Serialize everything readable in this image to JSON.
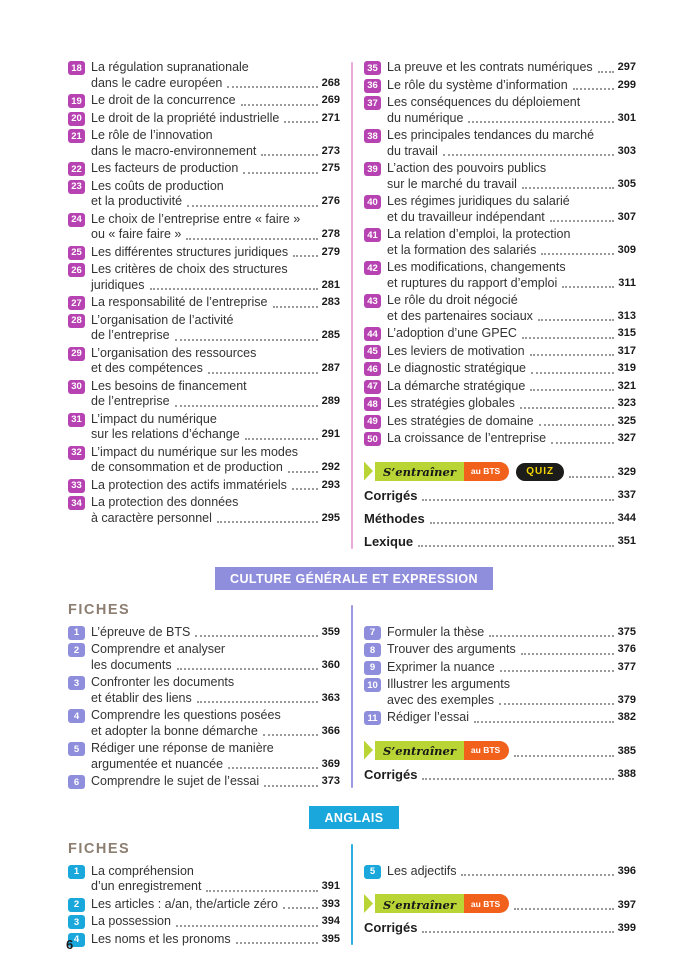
{
  "page": {
    "number": "6"
  },
  "labels": {
    "train": "S’entraîner",
    "bts": "au BTS",
    "quiz": "QUIZ"
  },
  "colors": {
    "magenta_badge": "#b743b2",
    "magenta_divider": "#eba9db",
    "periwinkle": "#8f8edd",
    "cyan": "#1aa7db",
    "train_green": "#b8d435",
    "train_orange": "#f2611c",
    "quiz_bg": "#1c1c1a",
    "quiz_text": "#f4d500",
    "fiches_heading": "#8c7e71"
  },
  "sections": [
    {
      "id": "management",
      "theme": "magenta",
      "banner": null,
      "fiches_label": null,
      "columns": [
        {
          "entries": [
            {
              "num": "18",
              "lines": [
                "La régulation supranationale",
                "dans le cadre européen"
              ],
              "page": "268"
            },
            {
              "num": "19",
              "lines": [
                "Le droit de la concurrence"
              ],
              "page": "269"
            },
            {
              "num": "20",
              "lines": [
                "Le droit de la propriété industrielle"
              ],
              "page": "271"
            },
            {
              "num": "21",
              "lines": [
                "Le rôle de l’innovation",
                "dans le macro-environnement"
              ],
              "page": "273"
            },
            {
              "num": "22",
              "lines": [
                "Les facteurs de production"
              ],
              "page": "275"
            },
            {
              "num": "23",
              "lines": [
                "Les coûts de production",
                "et la productivité"
              ],
              "page": "276"
            },
            {
              "num": "24",
              "lines": [
                "Le choix de l’entreprise entre « faire »",
                "ou « faire faire »"
              ],
              "page": "278"
            },
            {
              "num": "25",
              "lines": [
                "Les différentes structures juridiques"
              ],
              "page": "279"
            },
            {
              "num": "26",
              "lines": [
                "Les critères de choix des structures",
                "juridiques"
              ],
              "page": "281"
            },
            {
              "num": "27",
              "lines": [
                "La responsabilité de l’entreprise"
              ],
              "page": "283"
            },
            {
              "num": "28",
              "lines": [
                "L’organisation de l’activité",
                "de l’entreprise"
              ],
              "page": "285"
            },
            {
              "num": "29",
              "lines": [
                "L’organisation des ressources",
                "et des compétences"
              ],
              "page": "287"
            },
            {
              "num": "30",
              "lines": [
                "Les besoins de financement",
                "de l’entreprise"
              ],
              "page": "289"
            },
            {
              "num": "31",
              "lines": [
                "L’impact du numérique",
                "sur les relations d’échange"
              ],
              "page": "291"
            },
            {
              "num": "32",
              "lines": [
                "L’impact du numérique sur les modes",
                "de consommation et de production"
              ],
              "page": "292"
            },
            {
              "num": "33",
              "lines": [
                "La protection des actifs immatériels"
              ],
              "page": "293"
            },
            {
              "num": "34",
              "lines": [
                "La protection des données",
                "à caractère personnel"
              ],
              "page": "295"
            }
          ],
          "extras": []
        },
        {
          "entries": [
            {
              "num": "35",
              "lines": [
                "La preuve et les contrats numériques"
              ],
              "page": "297"
            },
            {
              "num": "36",
              "lines": [
                "Le rôle du système d’information"
              ],
              "page": "299"
            },
            {
              "num": "37",
              "lines": [
                "Les conséquences du déploiement",
                "du numérique"
              ],
              "page": "301"
            },
            {
              "num": "38",
              "lines": [
                "Les principales tendances du marché",
                "du travail"
              ],
              "page": "303"
            },
            {
              "num": "39",
              "lines": [
                "L’action des pouvoirs publics",
                "sur le marché du travail"
              ],
              "page": "305"
            },
            {
              "num": "40",
              "lines": [
                "Les régimes juridiques du salarié",
                "et du travailleur indépendant"
              ],
              "page": "307"
            },
            {
              "num": "41",
              "lines": [
                "La relation d’emploi, la protection",
                "et la formation des salariés"
              ],
              "page": "309"
            },
            {
              "num": "42",
              "lines": [
                "Les modifications, changements",
                "et ruptures du rapport d’emploi"
              ],
              "page": "311"
            },
            {
              "num": "43",
              "lines": [
                "Le rôle du droit négocié",
                "et des partenaires sociaux"
              ],
              "page": "313"
            },
            {
              "num": "44",
              "lines": [
                "L’adoption d’une GPEC"
              ],
              "page": "315"
            },
            {
              "num": "45",
              "lines": [
                "Les leviers de motivation"
              ],
              "page": "317"
            },
            {
              "num": "46",
              "lines": [
                "Le diagnostic stratégique"
              ],
              "page": "319"
            },
            {
              "num": "47",
              "lines": [
                "La démarche stratégique"
              ],
              "page": "321"
            },
            {
              "num": "48",
              "lines": [
                "Les stratégies globales"
              ],
              "page": "323"
            },
            {
              "num": "49",
              "lines": [
                "Les stratégies de domaine"
              ],
              "page": "325"
            },
            {
              "num": "50",
              "lines": [
                "La croissance de l’entreprise"
              ],
              "page": "327"
            }
          ],
          "extras": [
            {
              "type": "train",
              "quiz": true,
              "page": "329"
            },
            {
              "type": "label",
              "label": "Corrigés",
              "page": "337"
            },
            {
              "type": "label",
              "label": "Méthodes",
              "page": "344"
            },
            {
              "type": "label",
              "label": "Lexique",
              "page": "351"
            }
          ]
        }
      ]
    },
    {
      "id": "culture-generale",
      "theme": "periwinkle",
      "banner": "CULTURE GÉNÉRALE ET EXPRESSION",
      "fiches_label": "FICHES",
      "columns": [
        {
          "entries": [
            {
              "num": "1",
              "lines": [
                "L’épreuve de BTS"
              ],
              "page": "359"
            },
            {
              "num": "2",
              "lines": [
                "Comprendre et analyser",
                "les documents"
              ],
              "page": "360"
            },
            {
              "num": "3",
              "lines": [
                "Confronter les documents",
                "et établir des liens"
              ],
              "page": "363"
            },
            {
              "num": "4",
              "lines": [
                "Comprendre les questions posées",
                "et adopter la bonne démarche"
              ],
              "page": "366"
            },
            {
              "num": "5",
              "lines": [
                "Rédiger une réponse de manière",
                "argumentée et nuancée"
              ],
              "page": "369"
            },
            {
              "num": "6",
              "lines": [
                "Comprendre le sujet de l’essai"
              ],
              "page": "373"
            }
          ],
          "extras": []
        },
        {
          "entries": [
            {
              "num": "7",
              "lines": [
                "Formuler la thèse"
              ],
              "page": "375"
            },
            {
              "num": "8",
              "lines": [
                "Trouver des arguments"
              ],
              "page": "376"
            },
            {
              "num": "9",
              "lines": [
                "Exprimer la nuance"
              ],
              "page": "377"
            },
            {
              "num": "10",
              "lines": [
                "Illustrer les arguments",
                "avec des exemples"
              ],
              "page": "379"
            },
            {
              "num": "11",
              "lines": [
                "Rédiger l’essai"
              ],
              "page": "382"
            }
          ],
          "extras": [
            {
              "type": "train",
              "quiz": false,
              "page": "385"
            },
            {
              "type": "label",
              "label": "Corrigés",
              "page": "388"
            }
          ]
        }
      ]
    },
    {
      "id": "anglais",
      "theme": "cyan",
      "banner": "ANGLAIS",
      "fiches_label": "FICHES",
      "columns": [
        {
          "entries": [
            {
              "num": "1",
              "lines": [
                "La compréhension",
                "d’un enregistrement"
              ],
              "page": "391"
            },
            {
              "num": "2",
              "lines": [
                "Les articles : a/an, the/article zéro"
              ],
              "page": "393"
            },
            {
              "num": "3",
              "lines": [
                "La possession"
              ],
              "page": "394"
            },
            {
              "num": "4",
              "lines": [
                "Les noms et les pronoms"
              ],
              "page": "395"
            }
          ],
          "extras": []
        },
        {
          "entries": [
            {
              "num": "5",
              "lines": [
                "Les adjectifs"
              ],
              "page": "396"
            }
          ],
          "extras": [
            {
              "type": "train",
              "quiz": false,
              "page": "397"
            },
            {
              "type": "label",
              "label": "Corrigés",
              "page": "399"
            }
          ]
        }
      ]
    }
  ]
}
